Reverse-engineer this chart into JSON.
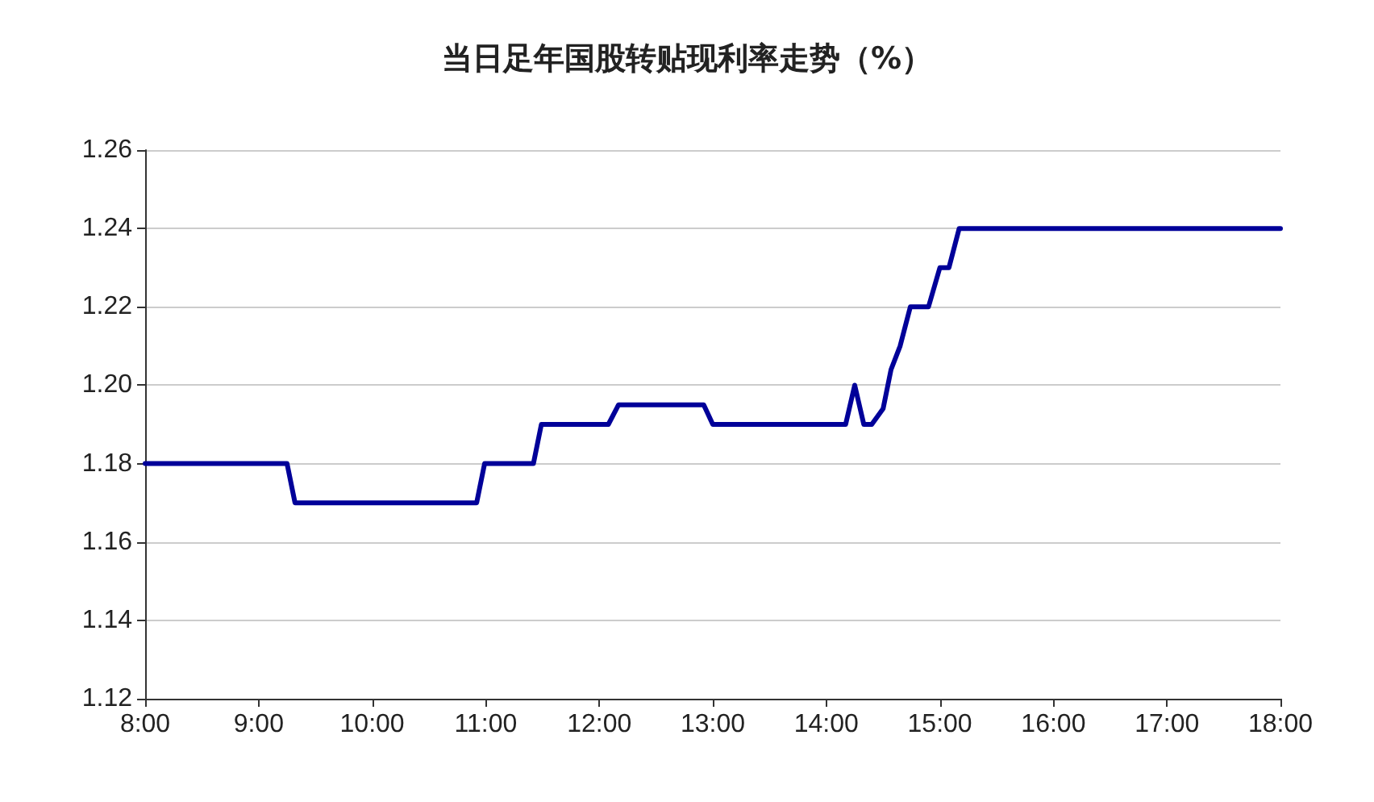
{
  "chart_data": {
    "type": "line",
    "title": "当日足年国股转贴现利率走势（%）",
    "series": [
      {
        "color": "#000099",
        "x": [
          8,
          9.25,
          9.32,
          10.92,
          10.99,
          11.42,
          11.49,
          12.08,
          12.17,
          12.92,
          13.0,
          14.17,
          14.25,
          14.33,
          14.4,
          14.5,
          14.57,
          14.65,
          14.74,
          14.9,
          15.0,
          15.08,
          15.17,
          18
        ],
        "values": [
          1.18,
          1.18,
          1.17,
          1.17,
          1.18,
          1.18,
          1.19,
          1.19,
          1.195,
          1.195,
          1.19,
          1.19,
          1.2,
          1.19,
          1.19,
          1.194,
          1.204,
          1.21,
          1.22,
          1.22,
          1.23,
          1.23,
          1.24,
          1.24
        ]
      }
    ],
    "xlim": [
      8,
      18
    ],
    "xticks": [
      {
        "value": 8,
        "label": "8:00"
      },
      {
        "value": 9,
        "label": "9:00"
      },
      {
        "value": 10,
        "label": "10:00"
      },
      {
        "value": 11,
        "label": "11:00"
      },
      {
        "value": 12,
        "label": "12:00"
      },
      {
        "value": 13,
        "label": "13:00"
      },
      {
        "value": 14,
        "label": "14:00"
      },
      {
        "value": 15,
        "label": "15:00"
      },
      {
        "value": 16,
        "label": "16:00"
      },
      {
        "value": 17,
        "label": "17:00"
      },
      {
        "value": 18,
        "label": "18:00"
      }
    ],
    "ylim": [
      1.12,
      1.26
    ],
    "yticks": [
      1.12,
      1.14,
      1.16,
      1.18,
      {
        "value": 1.2,
        "label": "1.20"
      },
      1.22,
      1.24,
      1.26
    ],
    "grid": "y",
    "marker": "none",
    "line_style": "solid"
  }
}
